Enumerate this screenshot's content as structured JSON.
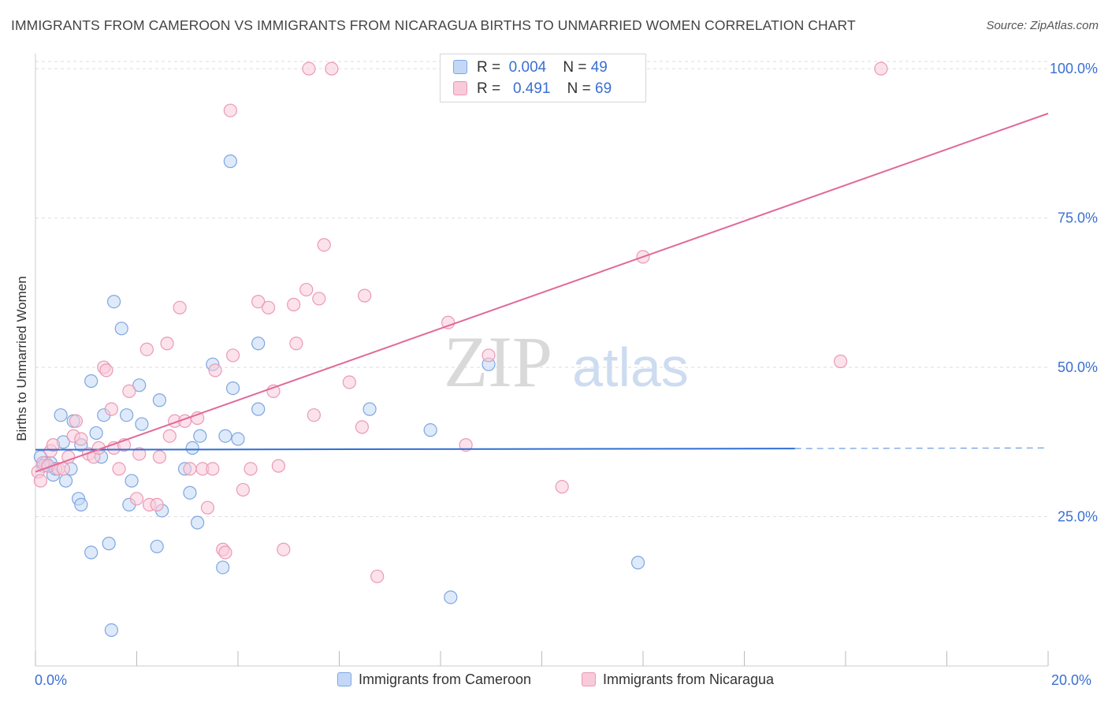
{
  "header": {
    "title": "IMMIGRANTS FROM CAMEROON VS IMMIGRANTS FROM NICARAGUA BIRTHS TO UNMARRIED WOMEN CORRELATION CHART",
    "source": "Source: ZipAtlas.com"
  },
  "stats": {
    "row1": {
      "r_label": "R =",
      "r_value": "0.004",
      "n_label": "N =",
      "n_value": "49"
    },
    "row2": {
      "r_label": "R =",
      "r_value": "0.491",
      "n_label": "N =",
      "n_value": "69"
    }
  },
  "watermark": {
    "zip": "ZIP",
    "atlas": "atlas"
  },
  "colors": {
    "cameroon_fill": "#c3d8f6",
    "cameroon_stroke": "#7ea6e0",
    "cameroon_line": "#2f6fd3",
    "nicaragua_fill": "#f9cad9",
    "nicaragua_stroke": "#ea9ab6",
    "nicaragua_line": "#e06a99",
    "axis_text": "#3a6fd0",
    "grid": "#dedede"
  },
  "chart_data": {
    "type": "scatter",
    "title": "IMMIGRANTS FROM CAMEROON VS IMMIGRANTS FROM NICARAGUA BIRTHS TO UNMARRIED WOMEN CORRELATION CHART",
    "xlabel": "",
    "ylabel": "Births to Unmarried Women",
    "xlim": [
      0,
      20
    ],
    "ylim": [
      0,
      102
    ],
    "x_tick_labels": [
      "0.0%",
      "20.0%"
    ],
    "y_ticks": [
      25,
      50,
      75,
      100
    ],
    "y_tick_labels": [
      "25.0%",
      "50.0%",
      "75.0%",
      "100.0%"
    ],
    "grid": true,
    "legend_position": "bottom-center",
    "series": [
      {
        "name": "Immigrants from Cameroon",
        "r": 0.004,
        "n": 49,
        "trend": {
          "x_start": 0,
          "y_start": 36.2,
          "x_end": 15,
          "y_end": 36.4,
          "dashed_to_x": 20,
          "dashed_to_y": 36.5
        },
        "points": [
          [
            0.1,
            35
          ],
          [
            0.2,
            34
          ],
          [
            0.15,
            33.5
          ],
          [
            0.3,
            34
          ],
          [
            0.35,
            32
          ],
          [
            0.4,
            33
          ],
          [
            0.5,
            42
          ],
          [
            0.55,
            37.5
          ],
          [
            0.6,
            31
          ],
          [
            0.7,
            33
          ],
          [
            0.75,
            41
          ],
          [
            0.85,
            28
          ],
          [
            0.9,
            37
          ],
          [
            0.9,
            27
          ],
          [
            1.1,
            19
          ],
          [
            1.1,
            47.7
          ],
          [
            1.2,
            39
          ],
          [
            1.3,
            35
          ],
          [
            1.35,
            42
          ],
          [
            1.45,
            20.5
          ],
          [
            1.55,
            61
          ],
          [
            1.7,
            56.5
          ],
          [
            1.8,
            42
          ],
          [
            1.85,
            27
          ],
          [
            1.9,
            31
          ],
          [
            2.05,
            47
          ],
          [
            2.1,
            40.5
          ],
          [
            2.4,
            20
          ],
          [
            2.45,
            44.5
          ],
          [
            2.5,
            26
          ],
          [
            2.95,
            33
          ],
          [
            3.05,
            29
          ],
          [
            3.1,
            36.5
          ],
          [
            3.2,
            24
          ],
          [
            3.25,
            38.5
          ],
          [
            3.5,
            50.5
          ],
          [
            3.7,
            16.5
          ],
          [
            3.75,
            38.5
          ],
          [
            3.85,
            84.5
          ],
          [
            3.9,
            46.5
          ],
          [
            4.0,
            38
          ],
          [
            4.4,
            54
          ],
          [
            4.4,
            43
          ],
          [
            6.6,
            43
          ],
          [
            7.8,
            39.5
          ],
          [
            8.2,
            11.5
          ],
          [
            8.95,
            50.5
          ],
          [
            11.9,
            17.3
          ],
          [
            1.5,
            6
          ]
        ]
      },
      {
        "name": "Immigrants from Nicaragua",
        "r": 0.491,
        "n": 69,
        "trend": {
          "x_start": 0,
          "y_start": 32.5,
          "x_end": 20,
          "y_end": 92.5
        },
        "points": [
          [
            0.05,
            32.5
          ],
          [
            0.15,
            34
          ],
          [
            0.25,
            33.5
          ],
          [
            0.3,
            36
          ],
          [
            0.35,
            37
          ],
          [
            0.45,
            33
          ],
          [
            0.55,
            33
          ],
          [
            0.65,
            35
          ],
          [
            0.75,
            38.5
          ],
          [
            0.8,
            41
          ],
          [
            0.9,
            38
          ],
          [
            1.05,
            35.5
          ],
          [
            1.15,
            35
          ],
          [
            1.25,
            36.5
          ],
          [
            1.35,
            50
          ],
          [
            1.4,
            49.5
          ],
          [
            1.5,
            43
          ],
          [
            1.55,
            36.5
          ],
          [
            1.65,
            33
          ],
          [
            1.75,
            37
          ],
          [
            1.85,
            46
          ],
          [
            2.0,
            28
          ],
          [
            2.05,
            35.5
          ],
          [
            2.2,
            53
          ],
          [
            2.25,
            27
          ],
          [
            2.4,
            27
          ],
          [
            2.45,
            35
          ],
          [
            2.6,
            54
          ],
          [
            2.65,
            38.5
          ],
          [
            2.75,
            41
          ],
          [
            2.85,
            60
          ],
          [
            2.95,
            41
          ],
          [
            3.05,
            33
          ],
          [
            3.2,
            41.5
          ],
          [
            3.3,
            33
          ],
          [
            3.4,
            26.5
          ],
          [
            3.5,
            33
          ],
          [
            3.55,
            49.5
          ],
          [
            3.7,
            19.5
          ],
          [
            3.75,
            19
          ],
          [
            3.85,
            93
          ],
          [
            3.9,
            52
          ],
          [
            4.1,
            29.5
          ],
          [
            4.25,
            33
          ],
          [
            4.4,
            61
          ],
          [
            4.6,
            60
          ],
          [
            4.7,
            46
          ],
          [
            4.8,
            33.5
          ],
          [
            4.9,
            19.5
          ],
          [
            5.1,
            60.5
          ],
          [
            5.15,
            54
          ],
          [
            5.35,
            63
          ],
          [
            5.5,
            42
          ],
          [
            5.6,
            61.5
          ],
          [
            5.7,
            70.5
          ],
          [
            5.4,
            100
          ],
          [
            5.85,
            100
          ],
          [
            6.2,
            47.5
          ],
          [
            6.45,
            40
          ],
          [
            6.5,
            62
          ],
          [
            6.75,
            15
          ],
          [
            8.15,
            57.5
          ],
          [
            8.5,
            37
          ],
          [
            8.95,
            52
          ],
          [
            10.4,
            30
          ],
          [
            12.0,
            68.5
          ],
          [
            15.9,
            51
          ],
          [
            16.7,
            100
          ],
          [
            0.1,
            31
          ]
        ]
      }
    ]
  },
  "legend": {
    "items": [
      {
        "label": "Immigrants from Cameroon"
      },
      {
        "label": "Immigrants from Nicaragua"
      }
    ]
  },
  "axis_labels": {
    "x_min": "0.0%",
    "x_max": "20.0%"
  }
}
